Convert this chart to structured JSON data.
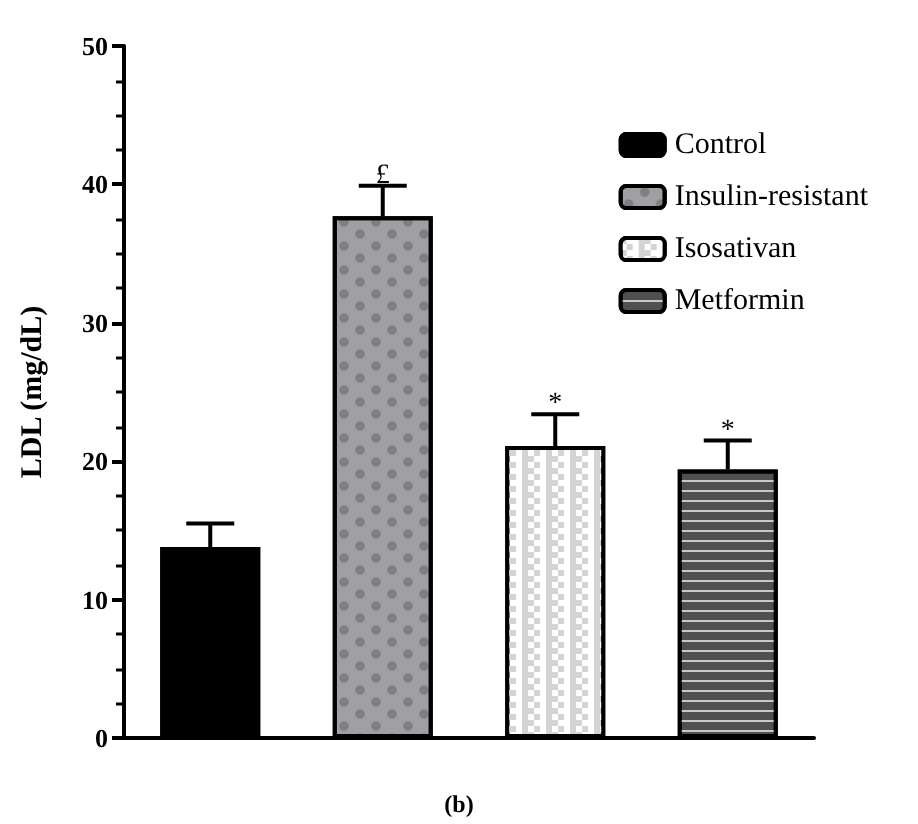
{
  "chart_data": {
    "type": "bar",
    "ylabel": "LDL (mg/dL)",
    "categories": [
      null,
      null,
      null,
      null
    ],
    "series": [
      {
        "name": "Control",
        "color": "#000000",
        "values": [
          13.8,
          null,
          null,
          null
        ],
        "errors": [
          [
            13.8,
            15.5
          ],
          null,
          null,
          null
        ]
      },
      {
        "name": "Insulin-resistant",
        "color": "#a0a0a4",
        "values": [
          null,
          37.7,
          null,
          null
        ],
        "errors": [
          null,
          [
            37.7,
            39.9
          ],
          null,
          null
        ]
      },
      {
        "name": "Isosativan",
        "color": "#d4d4d4",
        "values": [
          null,
          null,
          21.1,
          null
        ],
        "errors": [
          null,
          null,
          [
            21.1,
            23.4
          ],
          null
        ]
      },
      {
        "name": "Metformin",
        "color": "#505050",
        "values": [
          null,
          null,
          null,
          19.4
        ],
        "errors": [
          null,
          null,
          null,
          [
            19.4,
            21.5
          ]
        ]
      }
    ],
    "ylim": [
      0,
      50
    ],
    "yticks": [
      0,
      10,
      20,
      30,
      40,
      50
    ],
    "grid": false,
    "legend": "top right",
    "annotations": [
      {
        "text": "£",
        "y": 40.6
      },
      {
        "text": "*",
        "y": 24.1
      },
      {
        "text": "*",
        "y": 22.2
      },
      "(b)"
    ]
  }
}
